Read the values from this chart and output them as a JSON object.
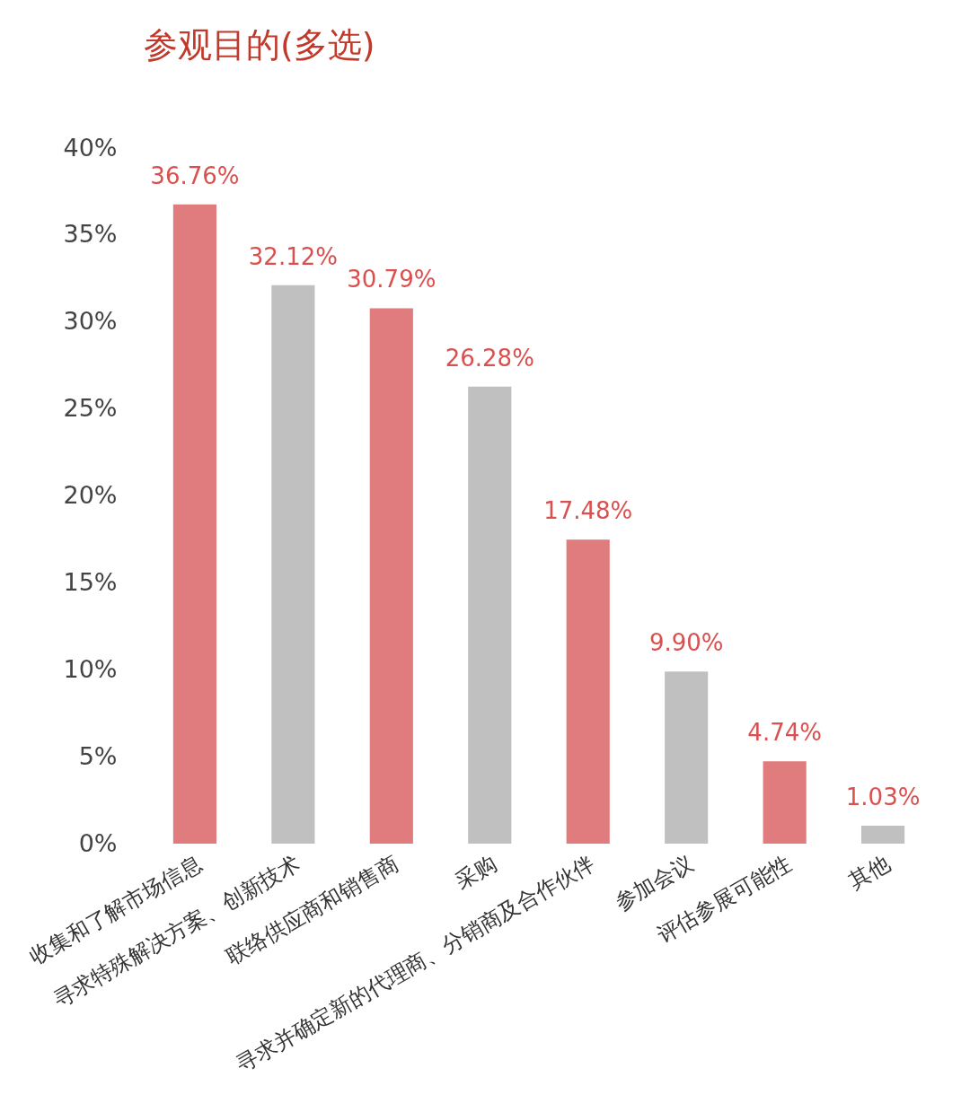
{
  "chart_data": {
    "type": "bar",
    "title": "参观目的(多选)",
    "categories": [
      "收集和了解市场信息",
      "寻求特殊解决方案、创新技术",
      "联络供应商和销售商",
      "采购",
      "寻求并确定新的代理商、分销商及合作伙伴",
      "参加会议",
      "评估参展可能性",
      "其他"
    ],
    "values": [
      36.76,
      32.12,
      30.79,
      26.28,
      17.48,
      9.9,
      4.74,
      1.03
    ],
    "colors": [
      "#e07b7e",
      "#c0c0c0",
      "#e07b7e",
      "#c0c0c0",
      "#e07b7e",
      "#c0c0c0",
      "#e07b7e",
      "#c0c0c0"
    ],
    "value_labels": [
      "36.76%",
      "32.12%",
      "30.79%",
      "26.28%",
      "17.48%",
      "9.90%",
      "4.74%",
      "1.03%"
    ],
    "ylim": [
      0,
      40
    ],
    "yticks": [
      {
        "value": 0,
        "label": "0%"
      },
      {
        "value": 5,
        "label": "5%"
      },
      {
        "value": 10,
        "label": "10%"
      },
      {
        "value": 15,
        "label": "15%"
      },
      {
        "value": 20,
        "label": "20%"
      },
      {
        "value": 25,
        "label": "25%"
      },
      {
        "value": 30,
        "label": "30%"
      },
      {
        "value": 35,
        "label": "35%"
      },
      {
        "value": 40,
        "label": "40%"
      }
    ],
    "grid": false,
    "legend": false
  }
}
